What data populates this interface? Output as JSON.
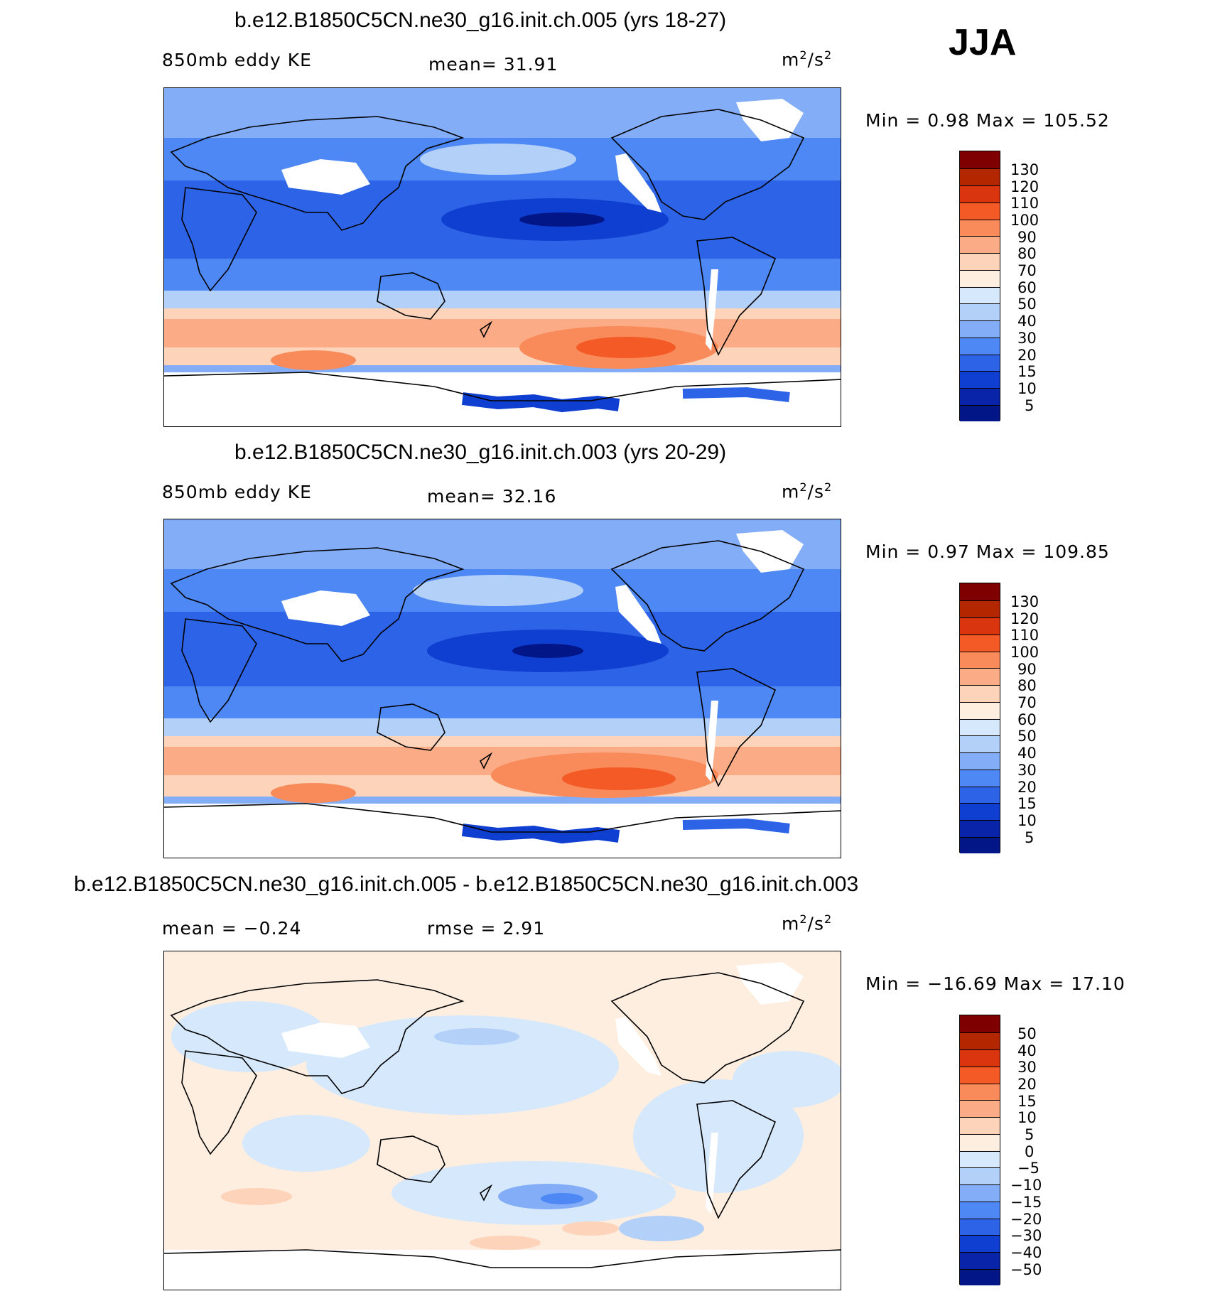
{
  "season": "JJA",
  "panels": [
    {
      "title": "b.e12.B1850C5CN.ne30_g16.init.ch.005 (yrs 18-27)",
      "left_label": "850mb eddy KE",
      "center_label": "mean=   31.91",
      "units_base": "m",
      "units_exp": "2",
      "units_mid": "/s",
      "units_exp2": "2",
      "minmax": "Min =     0.98  Max  =  105.52",
      "colorbar_labels": [
        "130",
        "120",
        "110",
        "100",
        "90",
        "80",
        "70",
        "60",
        "50",
        "40",
        "30",
        "20",
        "15",
        "10",
        "5"
      ],
      "colorbar_colors": [
        "#7f0000",
        "#b22600",
        "#d9360f",
        "#f35a26",
        "#f98b5a",
        "#fbab86",
        "#fdd3b9",
        "#fdeee0",
        "#d6e8fb",
        "#b3d0f9",
        "#83adf7",
        "#4e88f4",
        "#2d63e6",
        "#0f3fd1",
        "#0924a8",
        "#021688"
      ]
    },
    {
      "title": "b.e12.B1850C5CN.ne30_g16.init.ch.003 (yrs 20-29)",
      "left_label": "850mb eddy KE",
      "center_label": "mean=   32.16",
      "units_base": "m",
      "units_exp": "2",
      "units_mid": "/s",
      "units_exp2": "2",
      "minmax": "Min =     0.97  Max  =  109.85",
      "colorbar_labels": [
        "130",
        "120",
        "110",
        "100",
        "90",
        "80",
        "70",
        "60",
        "50",
        "40",
        "30",
        "20",
        "15",
        "10",
        "5"
      ],
      "colorbar_colors": [
        "#7f0000",
        "#b22600",
        "#d9360f",
        "#f35a26",
        "#f98b5a",
        "#fbab86",
        "#fdd3b9",
        "#fdeee0",
        "#d6e8fb",
        "#b3d0f9",
        "#83adf7",
        "#4e88f4",
        "#2d63e6",
        "#0f3fd1",
        "#0924a8",
        "#021688"
      ]
    },
    {
      "title": "b.e12.B1850C5CN.ne30_g16.init.ch.005 - b.e12.B1850C5CN.ne30_g16.init.ch.003",
      "left_label": "mean =   −0.24",
      "center_label": "rmse =    2.91",
      "units_base": "m",
      "units_exp": "2",
      "units_mid": "/s",
      "units_exp2": "2",
      "minmax": "Min = −16.69  Max  =   17.10",
      "colorbar_labels": [
        "50",
        "40",
        "30",
        "20",
        "15",
        "10",
        "5",
        "0",
        "−5",
        "−10",
        "−15",
        "−20",
        "−30",
        "−40",
        "−50"
      ],
      "colorbar_colors": [
        "#7f0000",
        "#b22600",
        "#d9360f",
        "#f35a26",
        "#f98b5a",
        "#fbab86",
        "#fdd3b9",
        "#fdeee0",
        "#d6e8fb",
        "#b3d0f9",
        "#83adf7",
        "#4e88f4",
        "#2d63e6",
        "#0f3fd1",
        "#0924a8",
        "#021688"
      ]
    }
  ]
}
